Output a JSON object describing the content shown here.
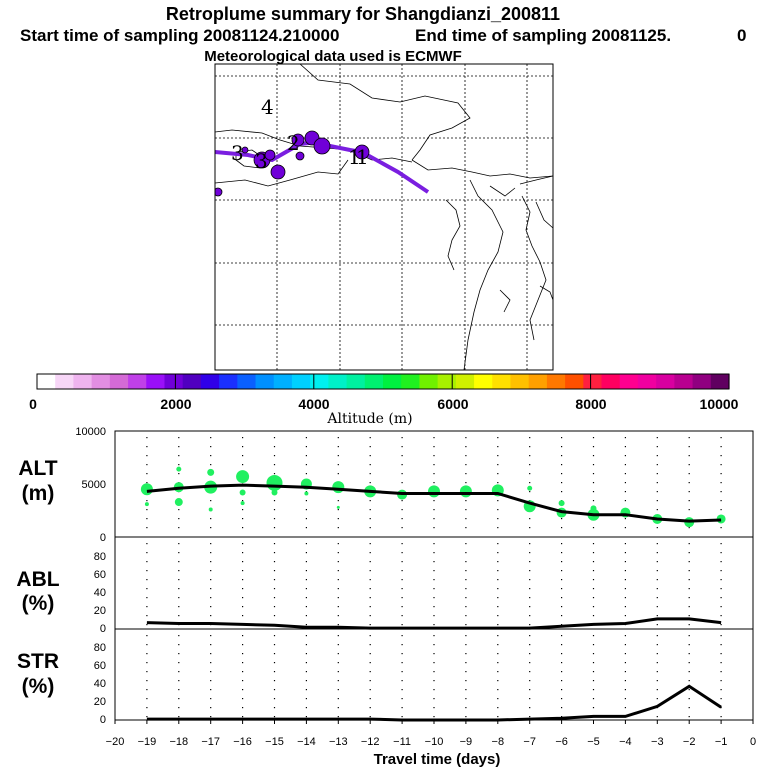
{
  "title": {
    "line1": "Retroplume summary for Shangdianzi_200811",
    "line2_left": "Start time of sampling 20081124.210000",
    "line2_right": "End time of sampling 20081125.",
    "line2_end": "0",
    "line3": "Meteorological data used is ECMWF"
  },
  "map": {
    "day_labels": [
      "4",
      "3",
      "3",
      "2",
      "1",
      "1"
    ],
    "track_color": "#7a1ee0",
    "marker_color": "#7000d8"
  },
  "colorbar": {
    "xlabel": "Altitude (m)",
    "ticks": [
      "0",
      "2000",
      "4000",
      "6000",
      "8000",
      "10000"
    ],
    "colors": [
      "#ffffff",
      "#f7d6f7",
      "#efb4ef",
      "#e28ee2",
      "#d46ad6",
      "#c040e8",
      "#9a10f8",
      "#7000d8",
      "#5000c0",
      "#3000e8",
      "#1a30ff",
      "#0a60ff",
      "#0090ff",
      "#00b0ff",
      "#00d0ff",
      "#00f0f0",
      "#00f0c8",
      "#00f0a0",
      "#00f070",
      "#00f040",
      "#20f020",
      "#70f000",
      "#a8f000",
      "#d0f000",
      "#ffff00",
      "#ffe000",
      "#ffc000",
      "#ffa000",
      "#ff7800",
      "#ff5000",
      "#ff2040",
      "#ff0060",
      "#ff0090",
      "#f000a0",
      "#d800a0",
      "#b80090",
      "#900080",
      "#600060"
    ]
  },
  "chart_data": [
    {
      "type": "scatter",
      "panel_label": [
        "ALT",
        "(m)"
      ],
      "y_ticks": [
        "10000",
        "5000",
        "0"
      ],
      "ylim": [
        0,
        10000
      ],
      "x": [
        -19,
        -18,
        -17,
        -16,
        -15,
        -14,
        -13,
        -12,
        -11,
        -10,
        -9,
        -8,
        -7,
        -6,
        -5,
        -4,
        -3,
        -2,
        -1
      ],
      "mean_line": [
        4300,
        4600,
        4800,
        4900,
        4800,
        4700,
        4500,
        4300,
        4100,
        4100,
        4100,
        4100,
        3200,
        2400,
        2100,
        2100,
        1700,
        1500,
        1600
      ],
      "marker_color": "#20f060",
      "points": [
        {
          "x": -19,
          "y": 4500,
          "r": 6
        },
        {
          "x": -19,
          "y": 3100,
          "r": 2
        },
        {
          "x": -18,
          "y": 6400,
          "r": 2.5
        },
        {
          "x": -18,
          "y": 4700,
          "r": 5
        },
        {
          "x": -18,
          "y": 3300,
          "r": 4
        },
        {
          "x": -17,
          "y": 6100,
          "r": 3.5
        },
        {
          "x": -17,
          "y": 4700,
          "r": 6.5
        },
        {
          "x": -17,
          "y": 2600,
          "r": 2
        },
        {
          "x": -16,
          "y": 5700,
          "r": 6.5
        },
        {
          "x": -16,
          "y": 4200,
          "r": 3
        },
        {
          "x": -16,
          "y": 3200,
          "r": 2
        },
        {
          "x": -15,
          "y": 5100,
          "r": 8
        },
        {
          "x": -15,
          "y": 4200,
          "r": 3
        },
        {
          "x": -14,
          "y": 5000,
          "r": 5.5
        },
        {
          "x": -14,
          "y": 4100,
          "r": 2
        },
        {
          "x": -13,
          "y": 4700,
          "r": 6
        },
        {
          "x": -13,
          "y": 2800,
          "r": 1.5
        },
        {
          "x": -12,
          "y": 4300,
          "r": 6
        },
        {
          "x": -11,
          "y": 4000,
          "r": 5
        },
        {
          "x": -10,
          "y": 4300,
          "r": 6
        },
        {
          "x": -9,
          "y": 4300,
          "r": 6
        },
        {
          "x": -8,
          "y": 4400,
          "r": 6
        },
        {
          "x": -7,
          "y": 4600,
          "r": 2.5
        },
        {
          "x": -7,
          "y": 2900,
          "r": 6
        },
        {
          "x": -6,
          "y": 3200,
          "r": 3
        },
        {
          "x": -6,
          "y": 2300,
          "r": 5
        },
        {
          "x": -5,
          "y": 2700,
          "r": 3
        },
        {
          "x": -5,
          "y": 2100,
          "r": 6
        },
        {
          "x": -4,
          "y": 2300,
          "r": 5
        },
        {
          "x": -3,
          "y": 1700,
          "r": 5
        },
        {
          "x": -2,
          "y": 1400,
          "r": 5
        },
        {
          "x": -1,
          "y": 1700,
          "r": 4.5
        }
      ]
    },
    {
      "type": "line",
      "panel_label": [
        "ABL",
        "(%)"
      ],
      "y_ticks": [
        "80",
        "60",
        "40",
        "20",
        "0"
      ],
      "ylim": [
        0,
        100
      ],
      "x": [
        -19,
        -18,
        -17,
        -16,
        -15,
        -14,
        -13,
        -12,
        -11,
        -10,
        -9,
        -8,
        -7,
        -6,
        -5,
        -4,
        -3,
        -2,
        -1
      ],
      "values": [
        7,
        6,
        6,
        5,
        4,
        2,
        2,
        1,
        1,
        1,
        1,
        1,
        1,
        3,
        5,
        6,
        11,
        11,
        7
      ]
    },
    {
      "type": "line",
      "panel_label": [
        "STR",
        "(%)"
      ],
      "y_ticks": [
        "80",
        "60",
        "40",
        "20",
        "0"
      ],
      "ylim": [
        0,
        100
      ],
      "x": [
        -19,
        -18,
        -17,
        -16,
        -15,
        -14,
        -13,
        -12,
        -11,
        -10,
        -9,
        -8,
        -7,
        -6,
        -5,
        -4,
        -3,
        -2,
        -1
      ],
      "values": [
        1,
        1,
        1,
        1,
        1,
        1,
        1,
        1,
        0,
        0,
        0,
        0,
        1,
        2,
        4,
        4,
        15,
        37,
        14
      ]
    }
  ],
  "x_axis": {
    "xlabel": "Travel time (days)",
    "ticks": [
      "−20",
      "−19",
      "−18",
      "−17",
      "−16",
      "−15",
      "−14",
      "−13",
      "−12",
      "−11",
      "−10",
      "−9",
      "−8",
      "−7",
      "−6",
      "−5",
      "−4",
      "−3",
      "−2",
      "−1",
      "0"
    ],
    "xlim": [
      -20,
      0
    ]
  }
}
